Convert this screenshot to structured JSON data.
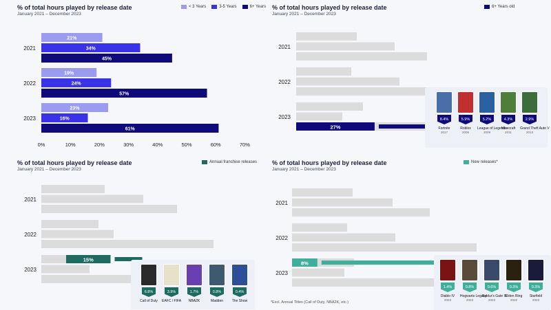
{
  "colors": {
    "lt3": "#9b9cf0",
    "y35": "#3a32e6",
    "y6": "#0f0a7a",
    "gray": "#dcdcdc",
    "franchise": "#1d6b60",
    "newrel": "#3fae9a"
  },
  "chart_data": [
    {
      "type": "bar",
      "orientation": "horizontal",
      "title": "% of total hours played by release date",
      "subtitle": "January 2021 – December 2023",
      "categories": [
        "2021",
        "2022",
        "2023"
      ],
      "series": [
        {
          "name": "< 3 Years",
          "values": [
            21,
            19,
            23
          ]
        },
        {
          "name": "3-5 Years",
          "values": [
            34,
            24,
            16
          ]
        },
        {
          "name": "6+ Years",
          "values": [
            45,
            57,
            61
          ]
        }
      ],
      "xlim": [
        0,
        70
      ],
      "xticks": [
        "0%",
        "10%",
        "20%",
        "30%",
        "40%",
        "50%",
        "60%",
        "70%"
      ],
      "legend": "top-right"
    },
    {
      "type": "bar",
      "orientation": "horizontal",
      "title": "% of total hours played by release date",
      "subtitle": "January 2021 – December 2023",
      "categories": [
        "2021",
        "2022",
        "2023"
      ],
      "highlight": {
        "series": "6+ Years old",
        "category": "2023",
        "value": 27,
        "label": "27%"
      },
      "legend": [
        "6+ Years old"
      ],
      "games": [
        {
          "name": "Fortnite",
          "year": "2017",
          "share": "8.4%"
        },
        {
          "name": "Roblox",
          "year": "2006",
          "share": "5.9%"
        },
        {
          "name": "League of Legends",
          "year": "2009",
          "share": "5.2%"
        },
        {
          "name": "Minecraft",
          "year": "2011",
          "share": "4.3%"
        },
        {
          "name": "Grand Theft Auto V",
          "year": "2013",
          "share": "2.9%"
        }
      ]
    },
    {
      "type": "bar",
      "orientation": "horizontal",
      "title": "% of total hours played by release date",
      "subtitle": "January 2021 – December 2023",
      "categories": [
        "2021",
        "2022",
        "2023"
      ],
      "highlight": {
        "series": "Annual franchise releases",
        "category": "2023",
        "value": 15,
        "label": "15%"
      },
      "legend": [
        "Annual franchise releases"
      ],
      "games": [
        {
          "name": "Call of Duty",
          "year": "",
          "share": "6.8%"
        },
        {
          "name": "EAFC / FIFA",
          "year": "",
          "share": "3.9%"
        },
        {
          "name": "NBA2K",
          "year": "",
          "share": "1.7%"
        },
        {
          "name": "Madden",
          "year": "",
          "share": "0.8%"
        },
        {
          "name": "The Show",
          "year": "",
          "share": "0.4%"
        }
      ]
    },
    {
      "type": "bar",
      "orientation": "horizontal",
      "title": "% of total hours played by release date",
      "subtitle": "January 2021 – December 2023",
      "categories": [
        "2021",
        "2022",
        "2023"
      ],
      "highlight": {
        "series": "New releases*",
        "category": "2023",
        "value": 8,
        "label": "8%"
      },
      "legend": [
        "New releases*"
      ],
      "footnote": "*Excl. Annual Titles (Call of Duty, NBA2K, etc.)",
      "games": [
        {
          "name": "Diablo IV",
          "year": "2023",
          "share": "1.4%"
        },
        {
          "name": "Hogwarts Legacy",
          "year": "2023",
          "share": "0.8%"
        },
        {
          "name": "Baldur's Gate III",
          "year": "2023",
          "share": "0.6%"
        },
        {
          "name": "Elden Ring",
          "year": "2022",
          "share": "0.3%"
        },
        {
          "name": "Starfield",
          "year": "2023",
          "share": "0.3%"
        }
      ]
    }
  ]
}
